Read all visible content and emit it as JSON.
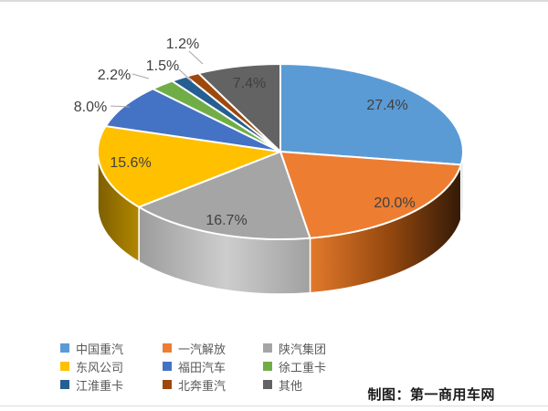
{
  "credit": "制图：第一商用车网",
  "chart_data": {
    "type": "pie",
    "style": "3d",
    "title": "",
    "unit": "%",
    "start_angle_deg": 0,
    "direction": "clockwise",
    "legend_position": "bottom-left",
    "legend_columns": 3,
    "series": [
      {
        "name": "中国重汽",
        "value": 27.4,
        "label": "27.4%",
        "color": "#5B9BD5"
      },
      {
        "name": "一汽解放",
        "value": 20.0,
        "label": "20.0%",
        "color": "#ED7D31"
      },
      {
        "name": "陕汽集团",
        "value": 16.7,
        "label": "16.7%",
        "color": "#A5A5A5"
      },
      {
        "name": "东风公司",
        "value": 15.6,
        "label": "15.6%",
        "color": "#FFC000"
      },
      {
        "name": "福田汽车",
        "value": 8.0,
        "label": "8.0%",
        "color": "#4472C4"
      },
      {
        "name": "徐工重卡",
        "value": 2.2,
        "label": "2.2%",
        "color": "#70AD47"
      },
      {
        "name": "江淮重卡",
        "value": 1.5,
        "label": "1.5%",
        "color": "#255E91"
      },
      {
        "name": "北奔重汽",
        "value": 1.2,
        "label": "1.2%",
        "color": "#9E480E"
      },
      {
        "name": "其他",
        "value": 7.4,
        "label": "7.4%",
        "color": "#636363"
      }
    ],
    "source_credit": "制图：第一商用车网"
  }
}
